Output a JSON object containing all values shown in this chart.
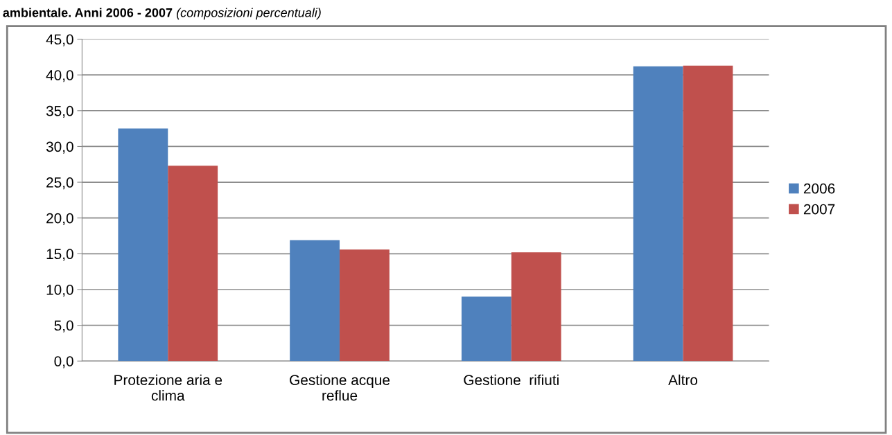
{
  "chart_data": {
    "type": "bar",
    "title": "ambientale. Anni 2006 - 2007",
    "subtitle": "(composizioni percentuali)",
    "categories": [
      "Protezione aria e\nclima",
      "Gestione acque\nreflue",
      "Gestione  rifiuti",
      "Altro"
    ],
    "series": [
      {
        "name": "2006",
        "color": "#4f81bd",
        "values": [
          32.5,
          16.9,
          9.0,
          41.2
        ]
      },
      {
        "name": "2007",
        "color": "#c0504d",
        "values": [
          27.3,
          15.6,
          15.2,
          41.3
        ]
      }
    ],
    "ylim": [
      0,
      45
    ],
    "yticks": [
      {
        "value": 0,
        "label": "0,0"
      },
      {
        "value": 5,
        "label": "5,0"
      },
      {
        "value": 10,
        "label": "10,0"
      },
      {
        "value": 15,
        "label": "15,0"
      },
      {
        "value": 20,
        "label": "20,0"
      },
      {
        "value": 25,
        "label": "25,0"
      },
      {
        "value": 30,
        "label": "30,0"
      },
      {
        "value": 35,
        "label": "35,0"
      },
      {
        "value": 40,
        "label": "40,0"
      },
      {
        "value": 45,
        "label": "45,0"
      }
    ],
    "grid": "y",
    "legend": "right"
  }
}
